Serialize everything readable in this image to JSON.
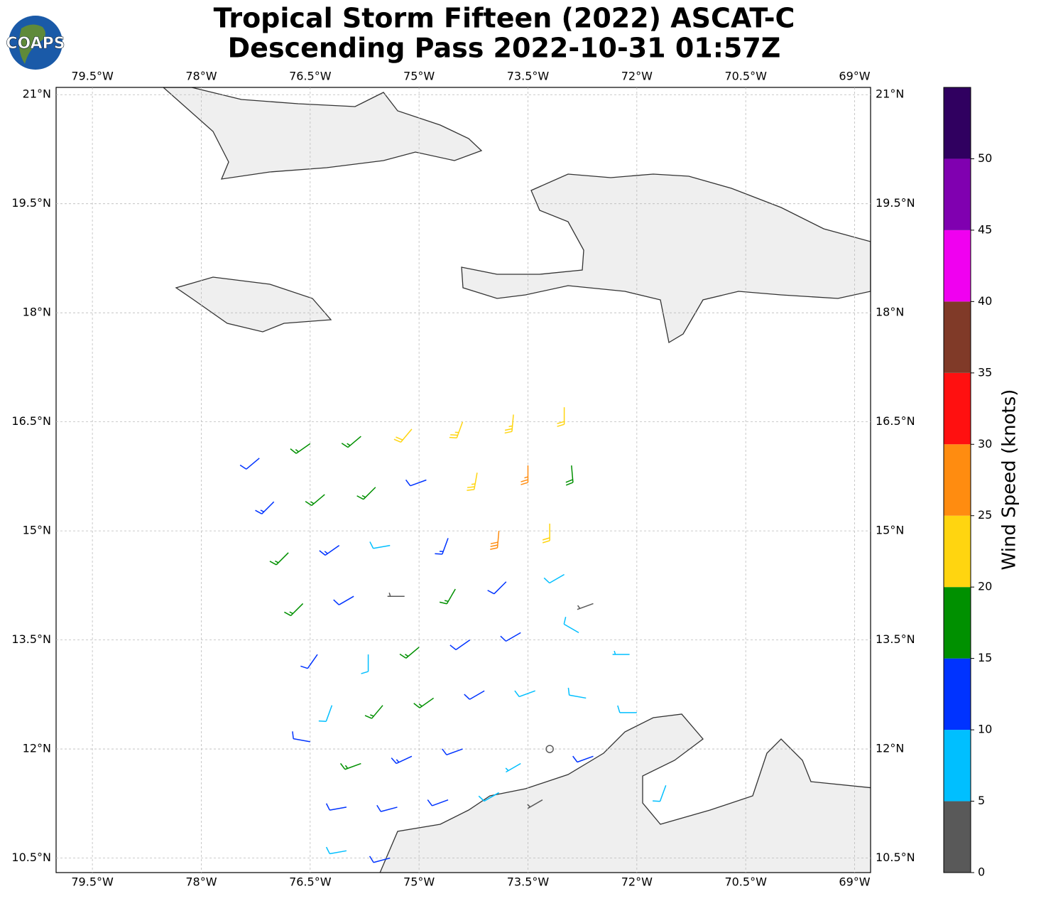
{
  "logo_text": "COAPS",
  "chart_data": {
    "type": "barbs",
    "title": [
      "Tropical Storm Fifteen (2022) ASCAT-C",
      "Descending Pass 2022-10-31 01:57Z"
    ],
    "xlim": [
      -80,
      -68.78
    ],
    "ylim": [
      10.3,
      21.1
    ],
    "xticks": [
      {
        "value": -79.5,
        "label": "79.5°W"
      },
      {
        "value": -78,
        "label": "78°W"
      },
      {
        "value": -76.5,
        "label": "76.5°W"
      },
      {
        "value": -75,
        "label": "75°W"
      },
      {
        "value": -73.5,
        "label": "73.5°W"
      },
      {
        "value": -72,
        "label": "72°W"
      },
      {
        "value": -70.5,
        "label": "70.5°W"
      },
      {
        "value": -69,
        "label": "69°W"
      }
    ],
    "yticks": [
      {
        "value": 10.5,
        "label": "10.5°N"
      },
      {
        "value": 12,
        "label": "12°N"
      },
      {
        "value": 13.5,
        "label": "13.5°N"
      },
      {
        "value": 15,
        "label": "15°N"
      },
      {
        "value": 16.5,
        "label": "16.5°N"
      },
      {
        "value": 18,
        "label": "18°N"
      },
      {
        "value": 19.5,
        "label": "19.5°N"
      },
      {
        "value": 21,
        "label": "21°N"
      }
    ],
    "grid": true,
    "barbs": {
      "lon": [
        -77.2,
        -76.5,
        -75.8,
        -75.1,
        -74.4,
        -73.7,
        -73.0,
        -77.0,
        -76.3,
        -75.6,
        -74.9,
        -74.2,
        -73.5,
        -72.9,
        -76.8,
        -76.1,
        -75.4,
        -74.6,
        -73.9,
        -73.2,
        -76.6,
        -75.9,
        -75.2,
        -74.5,
        -73.8,
        -73.0,
        -72.6,
        -76.4,
        -75.7,
        -75.0,
        -74.3,
        -73.6,
        -72.8,
        -72.1,
        -76.2,
        -75.5,
        -74.8,
        -74.1,
        -73.4,
        -72.7,
        -72.0,
        -76.5,
        -75.8,
        -75.1,
        -74.4,
        -73.6,
        -73.2,
        -72.6,
        -76.0,
        -75.3,
        -74.6,
        -73.9,
        -73.3,
        -71.6,
        -76.0,
        -75.4
      ],
      "lat": [
        16.0,
        16.2,
        16.3,
        16.4,
        16.5,
        16.6,
        16.7,
        15.4,
        15.5,
        15.6,
        15.7,
        15.8,
        15.9,
        15.9,
        14.7,
        14.8,
        14.8,
        14.9,
        15.0,
        15.1,
        14.0,
        14.1,
        14.1,
        14.2,
        14.3,
        14.4,
        14.0,
        13.3,
        13.3,
        13.4,
        13.5,
        13.6,
        13.6,
        13.3,
        12.6,
        12.6,
        12.7,
        12.8,
        12.8,
        12.7,
        12.5,
        12.1,
        11.8,
        11.9,
        12.0,
        11.8,
        12.0,
        11.9,
        11.2,
        11.2,
        11.3,
        11.4,
        11.3,
        11.5,
        10.6,
        10.5
      ],
      "speed": [
        12,
        15,
        17,
        22,
        24,
        23,
        22,
        13,
        16,
        17,
        12,
        24,
        27,
        18,
        16,
        14,
        9,
        14,
        28,
        22,
        17,
        11,
        4,
        16,
        12,
        9,
        4,
        12,
        9,
        16,
        12,
        11,
        8,
        7,
        8,
        16,
        17,
        12,
        8,
        8,
        9,
        12,
        16,
        13,
        11,
        7,
        2,
        12,
        12,
        11,
        10,
        8,
        4,
        8,
        8,
        10
      ],
      "direction": [
        230,
        235,
        230,
        220,
        200,
        185,
        180,
        225,
        230,
        225,
        250,
        190,
        180,
        175,
        225,
        235,
        260,
        200,
        185,
        180,
        225,
        240,
        270,
        210,
        225,
        240,
        250,
        215,
        180,
        230,
        235,
        240,
        300,
        270,
        200,
        220,
        235,
        240,
        250,
        280,
        270,
        280,
        250,
        245,
        250,
        240,
        0,
        250,
        260,
        255,
        250,
        240,
        240,
        200,
        260,
        255
      ]
    },
    "colorbar": {
      "label": "Wind Speed (knots)",
      "bounds": [
        0,
        5,
        10,
        15,
        20,
        25,
        30,
        35,
        40,
        45,
        50,
        55
      ],
      "colors": [
        "#595959",
        "#00bfff",
        "#0033ff",
        "#009000",
        "#ffd510",
        "#ff8c10",
        "#ff1010",
        "#803a28",
        "#f000f0",
        "#8000b0",
        "#300060"
      ],
      "ticks": [
        0,
        5,
        10,
        15,
        20,
        25,
        30,
        35,
        40,
        45,
        50
      ]
    }
  }
}
